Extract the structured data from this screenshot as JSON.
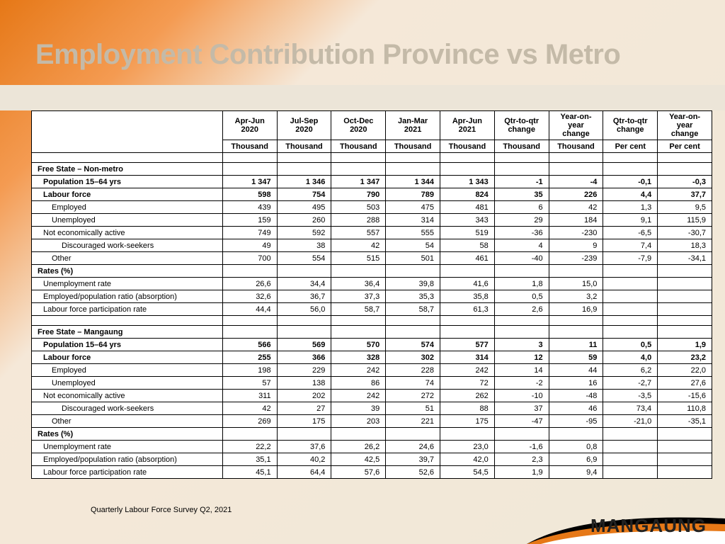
{
  "title": "Employment Contribution Province vs Metro",
  "source": "Quarterly Labour Force Survey Q2, 2021",
  "logo": "MANGAUNG",
  "theme": {
    "accent": "#e67817",
    "title_color": "#c4baa8",
    "table_border": "#000000",
    "background_band": "#ece5d8",
    "title_fontsize": 40,
    "cell_fontsize": 11
  },
  "table": {
    "type": "table",
    "period_headers": [
      "Apr-Jun 2020",
      "Jul-Sep 2020",
      "Oct-Dec 2020",
      "Jan-Mar 2021",
      "Apr-Jun 2021",
      "Qtr-to-qtr change",
      "Year-on-year change",
      "Qtr-to-qtr change",
      "Year-on-year change"
    ],
    "unit_headers": [
      "Thousand",
      "Thousand",
      "Thousand",
      "Thousand",
      "Thousand",
      "Thousand",
      "Thousand",
      "Per cent",
      "Per cent"
    ],
    "sections": [
      {
        "heading": "Free State – Non-metro",
        "rows": [
          {
            "label": "Population 15–64 yrs",
            "indent": 1,
            "bold": true,
            "vals": [
              "1 347",
              "1 346",
              "1 347",
              "1 344",
              "1 343",
              "-1",
              "-4",
              "-0,1",
              "-0,3"
            ]
          },
          {
            "label": "Labour force",
            "indent": 1,
            "bold": true,
            "vals": [
              "598",
              "754",
              "790",
              "789",
              "824",
              "35",
              "226",
              "4,4",
              "37,7"
            ]
          },
          {
            "label": "Employed",
            "indent": 2,
            "vals": [
              "439",
              "495",
              "503",
              "475",
              "481",
              "6",
              "42",
              "1,3",
              "9,5"
            ]
          },
          {
            "label": "Unemployed",
            "indent": 2,
            "vals": [
              "159",
              "260",
              "288",
              "314",
              "343",
              "29",
              "184",
              "9,1",
              "115,9"
            ]
          },
          {
            "label": "Not economically active",
            "indent": 1,
            "vals": [
              "749",
              "592",
              "557",
              "555",
              "519",
              "-36",
              "-230",
              "-6,5",
              "-30,7"
            ]
          },
          {
            "label": "Discouraged work-seekers",
            "indent": 3,
            "vals": [
              "49",
              "38",
              "42",
              "54",
              "58",
              "4",
              "9",
              "7,4",
              "18,3"
            ]
          },
          {
            "label": "Other",
            "indent": 2,
            "vals": [
              "700",
              "554",
              "515",
              "501",
              "461",
              "-40",
              "-239",
              "-7,9",
              "-34,1"
            ]
          },
          {
            "label": "Rates (%)",
            "indent": 0,
            "bold": true,
            "vals": [
              "",
              "",
              "",
              "",
              "",
              "",
              "",
              "",
              ""
            ]
          },
          {
            "label": "Unemployment rate",
            "indent": 1,
            "vals": [
              "26,6",
              "34,4",
              "36,4",
              "39,8",
              "41,6",
              "1,8",
              "15,0",
              "",
              ""
            ]
          },
          {
            "label": "Employed/population ratio (absorption)",
            "indent": 1,
            "vals": [
              "32,6",
              "36,7",
              "37,3",
              "35,3",
              "35,8",
              "0,5",
              "3,2",
              "",
              ""
            ]
          },
          {
            "label": "Labour force participation rate",
            "indent": 1,
            "vals": [
              "44,4",
              "56,0",
              "58,7",
              "58,7",
              "61,3",
              "2,6",
              "16,9",
              "",
              ""
            ]
          }
        ]
      },
      {
        "heading": "Free State – Mangaung",
        "rows": [
          {
            "label": "Population 15–64 yrs",
            "indent": 1,
            "bold": true,
            "vals": [
              "566",
              "569",
              "570",
              "574",
              "577",
              "3",
              "11",
              "0,5",
              "1,9"
            ]
          },
          {
            "label": "Labour force",
            "indent": 1,
            "bold": true,
            "vals": [
              "255",
              "366",
              "328",
              "302",
              "314",
              "12",
              "59",
              "4,0",
              "23,2"
            ]
          },
          {
            "label": "Employed",
            "indent": 2,
            "vals": [
              "198",
              "229",
              "242",
              "228",
              "242",
              "14",
              "44",
              "6,2",
              "22,0"
            ]
          },
          {
            "label": "Unemployed",
            "indent": 2,
            "vals": [
              "57",
              "138",
              "86",
              "74",
              "72",
              "-2",
              "16",
              "-2,7",
              "27,6"
            ]
          },
          {
            "label": "Not economically active",
            "indent": 1,
            "vals": [
              "311",
              "202",
              "242",
              "272",
              "262",
              "-10",
              "-48",
              "-3,5",
              "-15,6"
            ]
          },
          {
            "label": "Discouraged work-seekers",
            "indent": 3,
            "vals": [
              "42",
              "27",
              "39",
              "51",
              "88",
              "37",
              "46",
              "73,4",
              "110,8"
            ]
          },
          {
            "label": "Other",
            "indent": 2,
            "vals": [
              "269",
              "175",
              "203",
              "221",
              "175",
              "-47",
              "-95",
              "-21,0",
              "-35,1"
            ]
          },
          {
            "label": "Rates (%)",
            "indent": 0,
            "bold": true,
            "vals": [
              "",
              "",
              "",
              "",
              "",
              "",
              "",
              "",
              ""
            ]
          },
          {
            "label": "Unemployment rate",
            "indent": 1,
            "vals": [
              "22,2",
              "37,6",
              "26,2",
              "24,6",
              "23,0",
              "-1,6",
              "0,8",
              "",
              ""
            ]
          },
          {
            "label": "Employed/population ratio (absorption)",
            "indent": 1,
            "vals": [
              "35,1",
              "40,2",
              "42,5",
              "39,7",
              "42,0",
              "2,3",
              "6,9",
              "",
              ""
            ]
          },
          {
            "label": "Labour force participation rate",
            "indent": 1,
            "vals": [
              "45,1",
              "64,4",
              "57,6",
              "52,6",
              "54,5",
              "1,9",
              "9,4",
              "",
              ""
            ]
          }
        ]
      }
    ]
  }
}
